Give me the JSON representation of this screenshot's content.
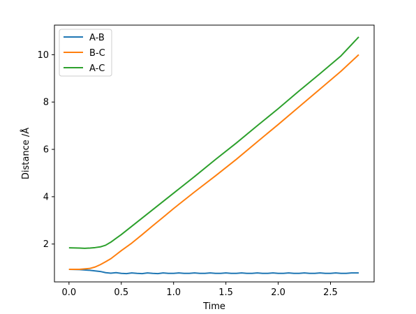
{
  "chart_data": {
    "type": "line",
    "title": "",
    "xlabel": "Time",
    "ylabel": "Distance /Å",
    "xlim": [
      -0.139,
      2.917
    ],
    "ylim": [
      0.4,
      11.25
    ],
    "xticks": [
      0.0,
      0.5,
      1.0,
      1.5,
      2.0,
      2.5
    ],
    "xtick_labels": [
      "0.0",
      "0.5",
      "1.0",
      "1.5",
      "2.0",
      "2.5"
    ],
    "yticks": [
      2,
      4,
      6,
      8,
      10
    ],
    "ytick_labels": [
      "2",
      "4",
      "6",
      "8",
      "10"
    ],
    "grid": false,
    "legend_position": "top-left",
    "series": [
      {
        "name": "A-B",
        "color": "#1f77b4",
        "x": [
          0.0,
          0.1,
          0.2,
          0.3,
          0.35,
          0.4,
          0.45,
          0.5,
          0.55,
          0.6,
          0.65,
          0.7,
          0.75,
          0.8,
          0.85,
          0.9,
          0.95,
          1.0,
          1.05,
          1.1,
          1.15,
          1.2,
          1.25,
          1.3,
          1.35,
          1.4,
          1.45,
          1.5,
          1.55,
          1.6,
          1.65,
          1.7,
          1.75,
          1.8,
          1.85,
          1.9,
          1.95,
          2.0,
          2.05,
          2.1,
          2.15,
          2.2,
          2.25,
          2.3,
          2.35,
          2.4,
          2.45,
          2.5,
          2.55,
          2.6,
          2.65,
          2.7,
          2.77
        ],
        "values": [
          0.93,
          0.92,
          0.89,
          0.84,
          0.79,
          0.77,
          0.79,
          0.76,
          0.75,
          0.78,
          0.76,
          0.75,
          0.78,
          0.76,
          0.75,
          0.78,
          0.76,
          0.76,
          0.78,
          0.76,
          0.76,
          0.78,
          0.76,
          0.76,
          0.78,
          0.76,
          0.76,
          0.78,
          0.76,
          0.76,
          0.78,
          0.76,
          0.76,
          0.78,
          0.76,
          0.76,
          0.78,
          0.76,
          0.76,
          0.78,
          0.76,
          0.76,
          0.78,
          0.76,
          0.76,
          0.78,
          0.76,
          0.76,
          0.78,
          0.76,
          0.76,
          0.78,
          0.78
        ]
      },
      {
        "name": "B-C",
        "color": "#ff7f0e",
        "x": [
          0.0,
          0.1,
          0.2,
          0.25,
          0.3,
          0.35,
          0.4,
          0.45,
          0.5,
          0.6,
          0.7,
          0.8,
          0.9,
          1.0,
          1.2,
          1.4,
          1.6,
          1.8,
          2.0,
          2.2,
          2.4,
          2.6,
          2.77
        ],
        "values": [
          0.93,
          0.93,
          0.97,
          1.03,
          1.13,
          1.25,
          1.38,
          1.55,
          1.72,
          2.04,
          2.4,
          2.77,
          3.13,
          3.5,
          4.2,
          4.88,
          5.58,
          6.32,
          7.05,
          7.8,
          8.55,
          9.3,
          10.0
        ]
      },
      {
        "name": "A-C",
        "color": "#2ca02c",
        "x": [
          0.0,
          0.1,
          0.15,
          0.2,
          0.25,
          0.3,
          0.35,
          0.4,
          0.45,
          0.5,
          0.6,
          0.7,
          0.8,
          0.9,
          1.0,
          1.2,
          1.4,
          1.6,
          1.8,
          2.0,
          2.2,
          2.4,
          2.6,
          2.77
        ],
        "values": [
          1.84,
          1.83,
          1.82,
          1.83,
          1.85,
          1.88,
          1.95,
          2.08,
          2.24,
          2.4,
          2.75,
          3.1,
          3.45,
          3.8,
          4.15,
          4.85,
          5.57,
          6.27,
          7.0,
          7.72,
          8.47,
          9.2,
          9.95,
          10.75
        ]
      }
    ]
  }
}
